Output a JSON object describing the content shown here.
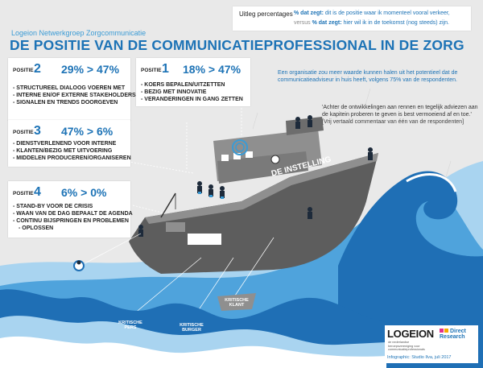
{
  "subtitle": "Logeion Netwerkgroep Zorgcommunicatie",
  "title": "DE POSITIE VAN DE COMMUNICATIEPROFESSIONAL IN DE ZORG",
  "legend": {
    "label": "Uitleg percentages",
    "line1_value": "% dat zegt:",
    "line1_text": "dit is de positie waar ik momenteel vooral verkeer,",
    "line2_prefix": "versus",
    "line2_value": "% dat zegt:",
    "line2_text": "hier wil ik in de toekomst (nog steeds) zijn."
  },
  "positions": [
    {
      "label": "POSITIE",
      "number": "2",
      "current": "29%",
      "future": "47%",
      "arrow": ">",
      "items": [
        "STRUCTUREEL DIALOOG VOEREN MET",
        "INTERNE EN/OF EXTERNE STAKEHOLDERS",
        "SIGNALEN EN TRENDS DOORGEVEN"
      ]
    },
    {
      "label": "POSITIE",
      "number": "1",
      "current": "18%",
      "future": "47%",
      "arrow": ">",
      "items": [
        "KOERS BEPALEN/UITZETTEN",
        "BEZIG MET INNOVATIE",
        "VERANDERINGEN IN GANG ZETTEN"
      ]
    },
    {
      "label": "POSITIE",
      "number": "3",
      "current": "47%",
      "future": "6%",
      "arrow": ">",
      "items": [
        "DIENSTVERLENEND VOOR INTERNE",
        "KLANTEN/BEZIG MET UITVOERING",
        "MIDDELEN PRODUCEREN/ORGANISEREN"
      ]
    },
    {
      "label": "POSITIE",
      "number": "4",
      "current": "6%",
      "future": "0%",
      "arrow": ">",
      "items": [
        "STAND-BY VOOR DE CRISIS",
        "WAAN VAN DE DAG BEPAALT DE AGENDA",
        "CONTINU BIJSPRINGEN EN PROBLEMEN",
        "OPLOSSEN"
      ]
    }
  ],
  "note": "Een organisatie zou meer waarde kunnen halen uit het potentieel dat de communicatieadviseur in huis heeft, volgens 75% van de respondenten.",
  "quote": {
    "text": "'Achter de ontwikkelingen aan rennen en tegelijk adviezen aan de kapitein proberen te geven is best vermoeiend af en toe.'",
    "source": "[Vrij vertaald commentaar van één van de respondenten]"
  },
  "ship_label": "DE INSTELLING",
  "boats": [
    {
      "line1": "KRITISCHE",
      "line2": "PERS"
    },
    {
      "line1": "KRITISCHE",
      "line2": "BURGER"
    },
    {
      "line1": "KRITISCHE",
      "line2": "KLANT"
    }
  ],
  "logos": {
    "logeion": "LOGEION",
    "logeion_sub": "de nederlandse beroepsvereniging voor communicatieprofessionals",
    "dr_line1": "Direct",
    "dr_line2": "Research",
    "credit": "Infographic: Studio Ilva, juli 2017"
  },
  "colors": {
    "accent": "#1d73b6",
    "sea_dark": "#1f6fb5",
    "sea_mid": "#4fa3dc",
    "sea_light": "#a9d4f0",
    "ship": "#5d5d5d",
    "ship_light": "#8f8f8f"
  }
}
